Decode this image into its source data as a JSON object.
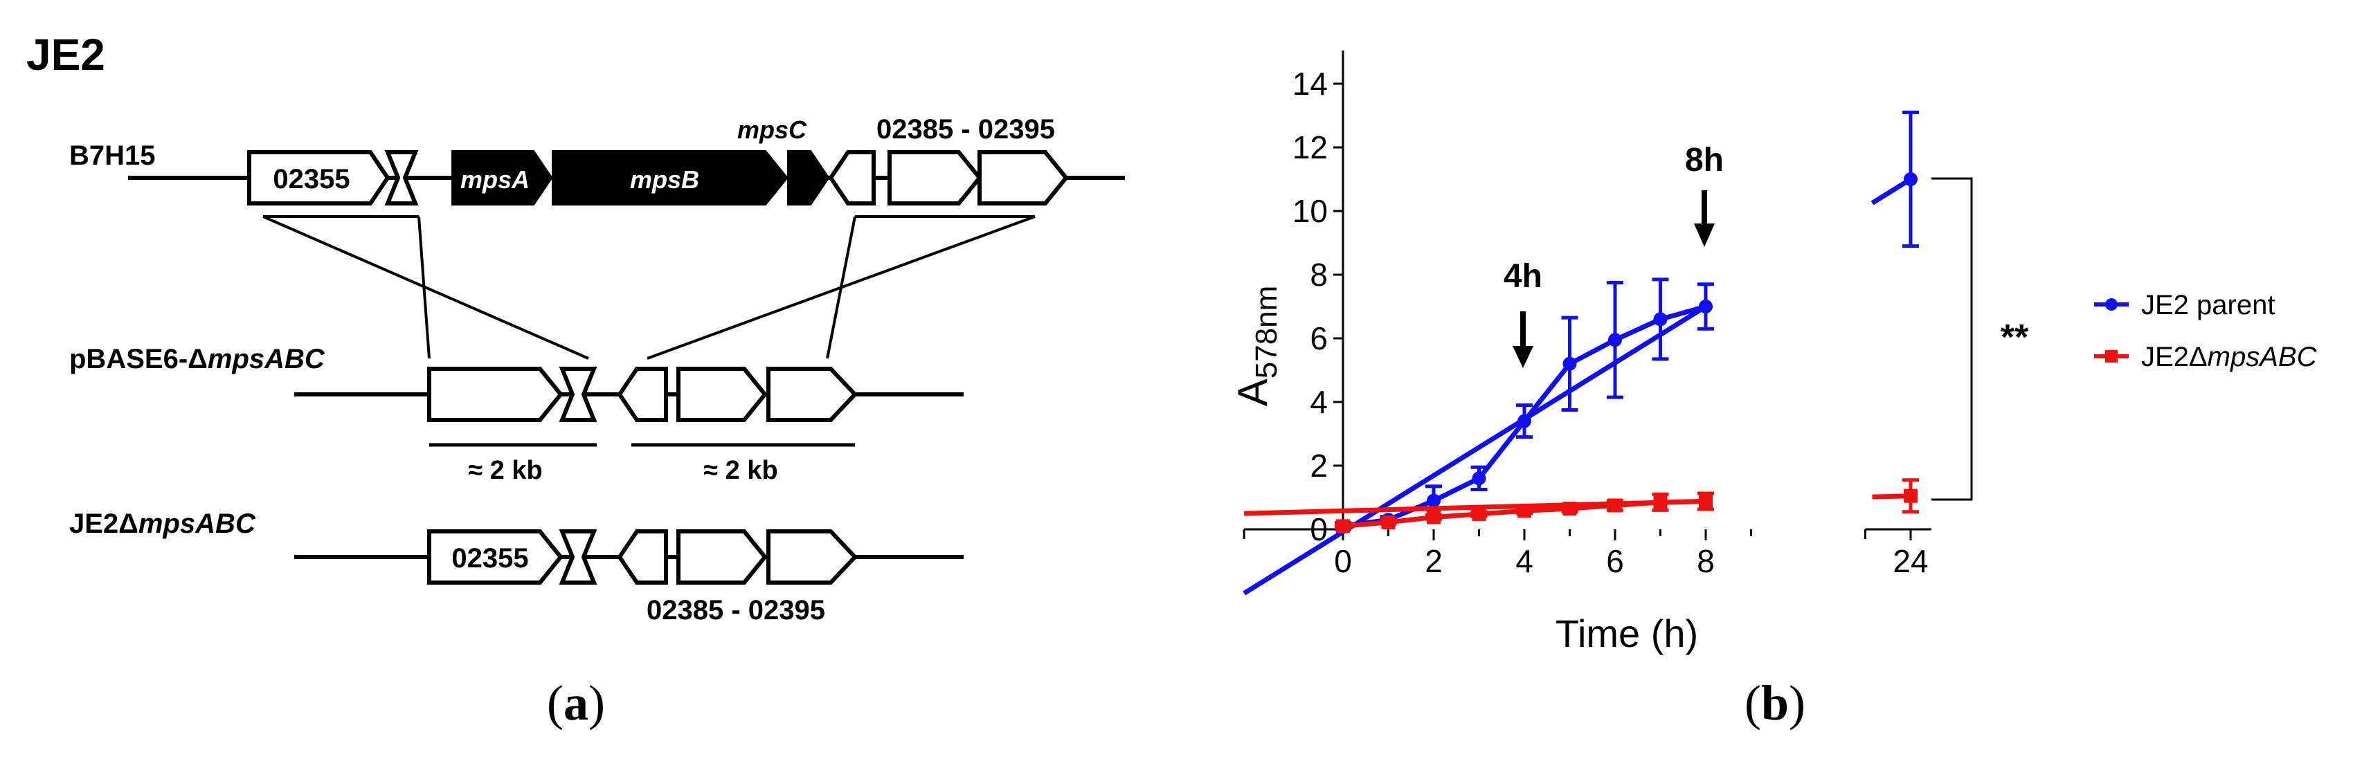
{
  "panel_a": {
    "title": "JE2",
    "caption_letter": "a",
    "row1": {
      "label": "B7H15",
      "genes": {
        "g02355": "02355",
        "mpsA": "mpsA",
        "mpsB": "mpsB",
        "mpsC": "mpsC",
        "range": "02385 - 02395"
      }
    },
    "row2": {
      "label_prefix": "pBASE6-Δ",
      "label_italic": "mpsABC"
    },
    "arm_left_label": "≈ 2 kb",
    "arm_right_label": "≈ 2 kb",
    "row3": {
      "label_prefix": "JE2Δ",
      "label_italic": "mpsABC",
      "genes": {
        "g02355": "02355",
        "range": "02385 - 02395"
      }
    }
  },
  "panel_b": {
    "caption_letter": "b",
    "significance": "**",
    "arrow_4h": "4h",
    "arrow_8h": "8h",
    "legend": [
      {
        "label": "JE2 parent",
        "color": "#1010ee"
      },
      {
        "label_prefix": "JE2Δ",
        "label_italic": "mpsABC",
        "color": "#ee1111"
      }
    ]
  },
  "chart_data": {
    "type": "line",
    "xlabel": "Time (h)",
    "ylabel_main": "A",
    "ylabel_sub": "578nm",
    "x_ticks": [
      "0",
      "2",
      "4",
      "6",
      "8",
      "24"
    ],
    "y_ticks": [
      "0",
      "2",
      "4",
      "6",
      "8",
      "10",
      "12",
      "14"
    ],
    "ylim": [
      0,
      15
    ],
    "x_axis_break": "between 9 and 23",
    "series": [
      {
        "name": "JE2 parent",
        "color": "#1010ee",
        "x": [
          0,
          1,
          2,
          3,
          4,
          5,
          6,
          7,
          8,
          24
        ],
        "y": [
          0.1,
          0.3,
          0.9,
          1.6,
          3.4,
          5.2,
          5.95,
          6.6,
          7.0,
          11.0
        ],
        "err": [
          0.1,
          0.1,
          0.45,
          0.35,
          0.5,
          1.45,
          1.8,
          1.25,
          0.7,
          2.1
        ]
      },
      {
        "name": "JE2ΔmpsABC",
        "color": "#ee1111",
        "x": [
          0,
          1,
          2,
          3,
          4,
          5,
          6,
          7,
          8,
          24
        ],
        "y": [
          0.1,
          0.22,
          0.38,
          0.48,
          0.58,
          0.65,
          0.75,
          0.85,
          0.88,
          1.05
        ],
        "err": [
          0.05,
          0.05,
          0.06,
          0.07,
          0.08,
          0.1,
          0.15,
          0.25,
          0.25,
          0.5
        ]
      }
    ]
  }
}
